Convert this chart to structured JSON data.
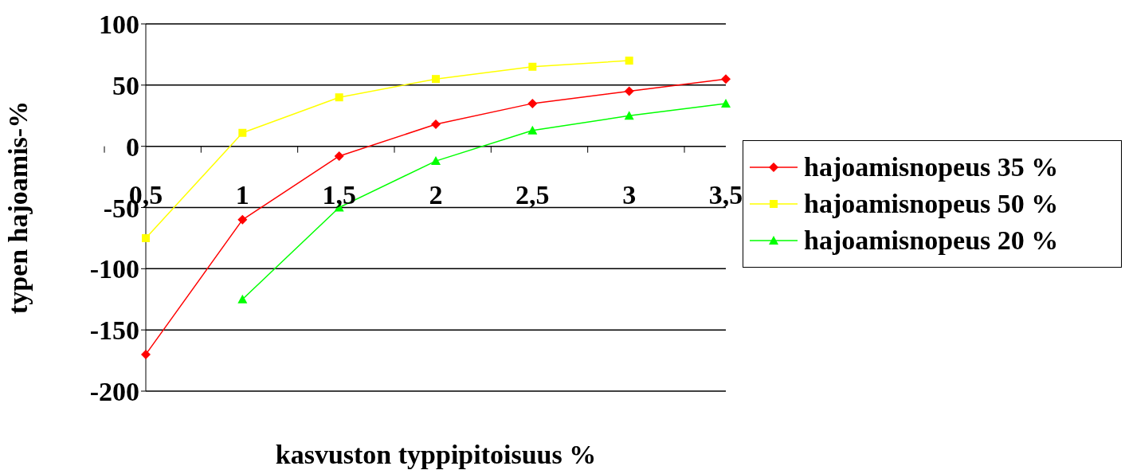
{
  "chart_data": {
    "type": "line",
    "xlabel": "kasvuston typpipitoisuus %",
    "ylabel": "typen hajoamis-%",
    "categories": [
      "0,5",
      "1",
      "1,5",
      "2",
      "2,5",
      "3",
      "3,5"
    ],
    "series": [
      {
        "name": "hajoamisnopeus 35 %",
        "color": "#ff0000",
        "marker": "diamond",
        "values": [
          -170,
          -60,
          -8,
          18,
          35,
          45,
          55
        ]
      },
      {
        "name": "hajoamisnopeus 50 %",
        "color": "#ffff00",
        "marker": "square",
        "values": [
          -75,
          11,
          40,
          55,
          65,
          70,
          null
        ]
      },
      {
        "name": "hajoamisnopeus 20 %",
        "color": "#00ff00",
        "marker": "triangle",
        "values": [
          null,
          -125,
          -50,
          -12,
          13,
          25,
          35
        ]
      }
    ],
    "ylim": [
      -200,
      100
    ],
    "yticks": [
      -200,
      -150,
      -100,
      -50,
      0,
      50,
      100
    ],
    "grid": "y",
    "legend": "right",
    "line_style": "solid"
  }
}
